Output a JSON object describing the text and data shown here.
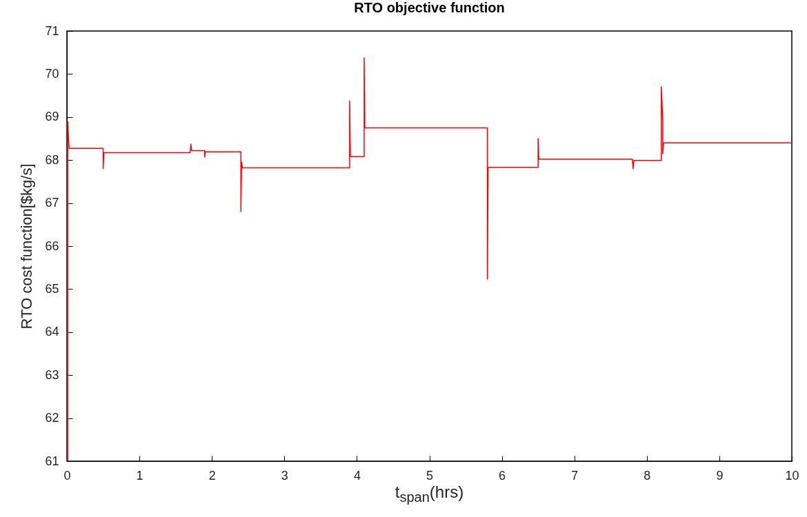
{
  "chart_data": {
    "type": "line",
    "title": "RTO objective function",
    "xlabel": "t$_{span}$(hrs)",
    "ylabel": "RTO cost function[$kg/s]",
    "xlim": [
      0,
      10
    ],
    "ylim": [
      61,
      71
    ],
    "xticks": [
      0,
      1,
      2,
      3,
      4,
      5,
      6,
      7,
      8,
      9,
      10
    ],
    "yticks": [
      61,
      62,
      63,
      64,
      65,
      66,
      67,
      68,
      69,
      70,
      71
    ],
    "grid": false,
    "legend": false,
    "series": [
      {
        "color": "#ff0000",
        "x": [
          0.01,
          0.01,
          0.03,
          0.5,
          0.5,
          0.51,
          1.7,
          1.71,
          1.72,
          1.9,
          1.9,
          1.91,
          2.4,
          2.4,
          2.41,
          2.42,
          3.9,
          3.9,
          3.91,
          4.1,
          4.1,
          4.11,
          5.8,
          5.8,
          5.81,
          6.5,
          6.5,
          6.51,
          7.8,
          7.81,
          7.82,
          8.2,
          8.2,
          8.22,
          8.22,
          8.23,
          10
        ],
        "values": [
          61,
          68.9,
          68.27,
          68.27,
          67.8,
          68.17,
          68.17,
          68.37,
          68.22,
          68.22,
          68.07,
          68.19,
          68.19,
          66.8,
          67.95,
          67.82,
          67.82,
          69.37,
          68.08,
          68.08,
          70.38,
          68.75,
          68.75,
          65.23,
          67.83,
          67.83,
          68.5,
          68.02,
          68.02,
          67.8,
          67.99,
          67.99,
          69.7,
          68.88,
          68.15,
          68.4,
          68.4
        ]
      }
    ]
  }
}
